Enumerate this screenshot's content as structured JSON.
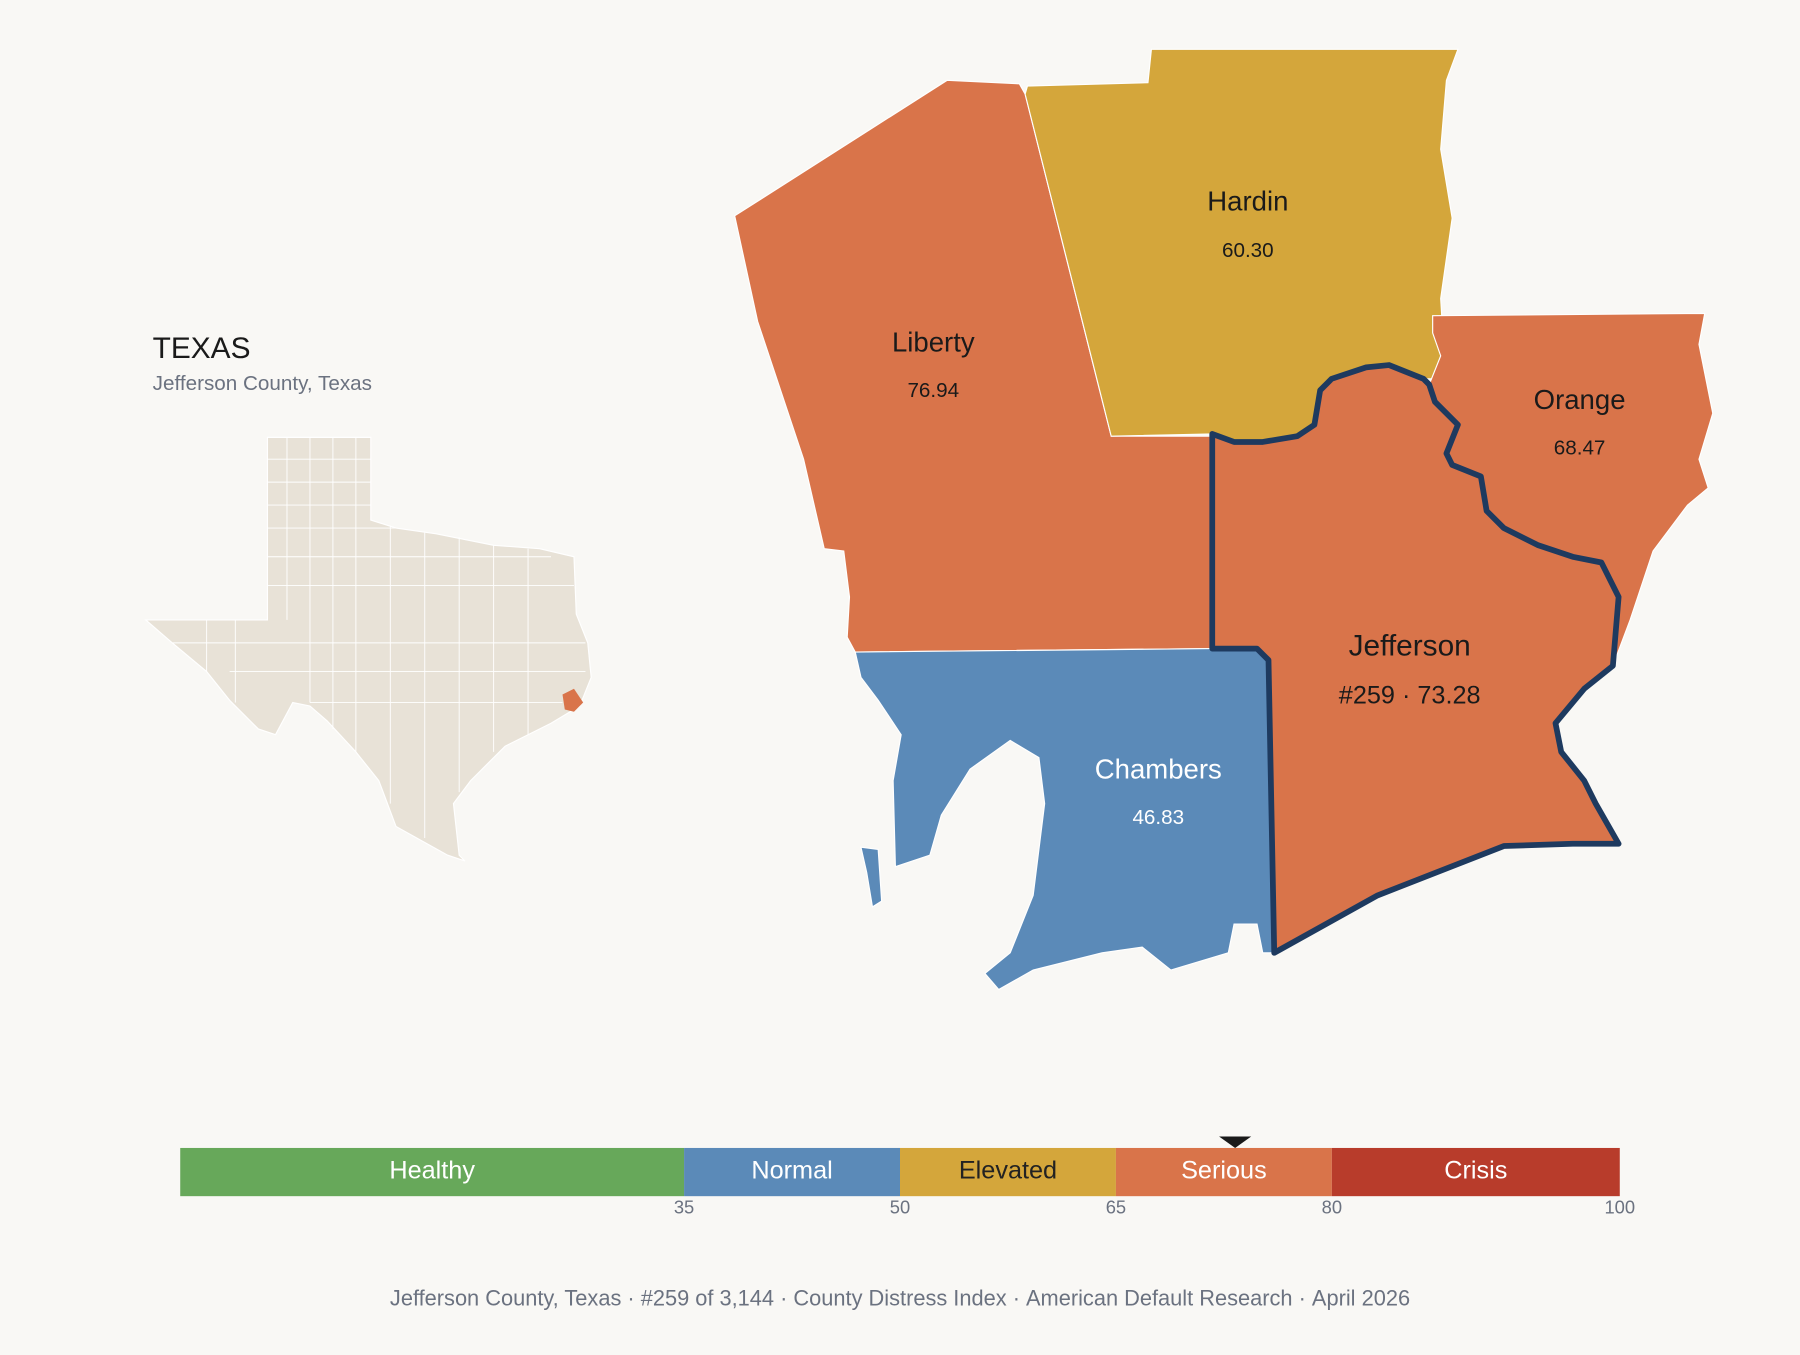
{
  "inset": {
    "title": "TEXAS",
    "subtitle": "Jefferson County, Texas"
  },
  "counties": [
    {
      "name": "Liberty",
      "score_label": "76.94",
      "color": "#d9744a"
    },
    {
      "name": "Hardin",
      "score_label": "60.30",
      "color": "#d4a63b"
    },
    {
      "name": "Orange",
      "score_label": "68.47",
      "color": "#d9744a"
    },
    {
      "name": "Chambers",
      "score_label": "46.83",
      "color": "#5b8ab8"
    },
    {
      "name": "Jefferson",
      "score_label": "#259 · 73.28",
      "score": 73.28,
      "color": "#d9744a",
      "highlight": "#1e3a5f"
    }
  ],
  "scale": {
    "range": [
      0,
      100
    ],
    "ticks": [
      35,
      50,
      65,
      80,
      100
    ],
    "bands": [
      {
        "label": "Healthy",
        "color": "#67a85a",
        "text_color": "#ffffff"
      },
      {
        "label": "Normal",
        "color": "#5b8ab8",
        "text_color": "#ffffff"
      },
      {
        "label": "Elevated",
        "color": "#d4a63b",
        "text_color": "#222222"
      },
      {
        "label": "Serious",
        "color": "#d9744a",
        "text_color": "#ffffff"
      },
      {
        "label": "Crisis",
        "color": "#b83c2b",
        "text_color": "#ffffff"
      }
    ]
  },
  "footer": {
    "separator": "·",
    "items": [
      "Jefferson County, Texas",
      "#259 of 3,144",
      "County Distress Index",
      "American Default Research",
      "April 2026"
    ]
  }
}
